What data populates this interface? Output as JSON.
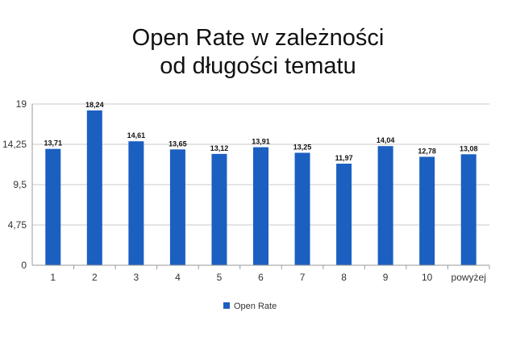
{
  "chart_data": {
    "type": "bar",
    "title_lines": [
      "Open Rate w zależności",
      "od długości tematu"
    ],
    "categories": [
      "1",
      "2",
      "3",
      "4",
      "5",
      "6",
      "7",
      "8",
      "9",
      "10",
      "powyżej"
    ],
    "series": [
      {
        "name": "Open Rate",
        "values": [
          13.71,
          18.24,
          14.61,
          13.65,
          13.12,
          13.91,
          13.25,
          11.97,
          14.04,
          12.78,
          13.08
        ],
        "labels": [
          "13,71",
          "18,24",
          "14,61",
          "13,65",
          "13,12",
          "13,91",
          "13,25",
          "11,97",
          "14,04",
          "12,78",
          "13,08"
        ],
        "color": "#1b5fc1"
      }
    ],
    "yticks": [
      {
        "value": 0,
        "label": "0"
      },
      {
        "value": 4.75,
        "label": "4,75"
      },
      {
        "value": 9.5,
        "label": "9,5"
      },
      {
        "value": 14.25,
        "label": "14,25"
      },
      {
        "value": 19,
        "label": "19"
      }
    ],
    "ylim": [
      0,
      19
    ],
    "grid": true,
    "legend_position": "bottom"
  }
}
